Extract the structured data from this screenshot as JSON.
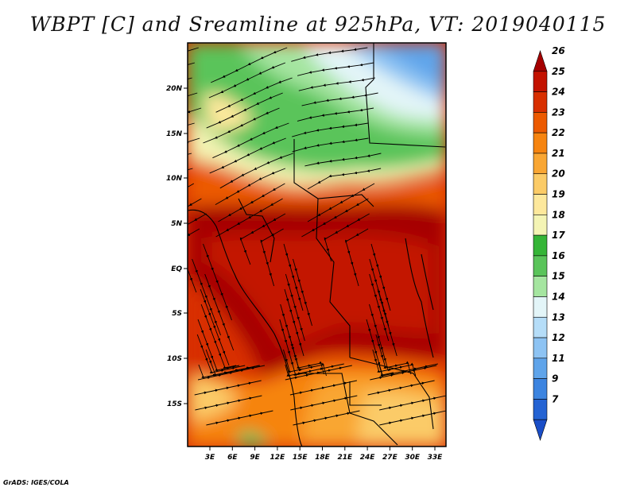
{
  "title": "WBPT [C] and Sreamline at 925hPa, VT: 2019040115",
  "footer": "GrADS: IGES/COLA",
  "map": {
    "lat_labels": [
      "20N",
      "15N",
      "10N",
      "5N",
      "EQ",
      "5S",
      "10S",
      "15S"
    ],
    "lon_labels": [
      "3E",
      "6E",
      "9E",
      "12E",
      "15E",
      "18E",
      "21E",
      "24E",
      "27E",
      "30E",
      "33E"
    ]
  },
  "colorbar": {
    "labels": [
      "26",
      "25",
      "24",
      "23",
      "22",
      "21",
      "20",
      "19",
      "18",
      "17",
      "16",
      "15",
      "14",
      "13",
      "12",
      "11",
      "9",
      "7"
    ],
    "colors": [
      "#a50000",
      "#c31200",
      "#d82f00",
      "#ec5a00",
      "#f6840f",
      "#f9a633",
      "#fbcb67",
      "#fde89c",
      "#f4f4b4",
      "#35b537",
      "#5ac45a",
      "#a5e5a0",
      "#e3f5f8",
      "#b5ddf8",
      "#8dc3f3",
      "#5fa4ea",
      "#3c84e0",
      "#2463d3",
      "#1a4ec7"
    ]
  }
}
